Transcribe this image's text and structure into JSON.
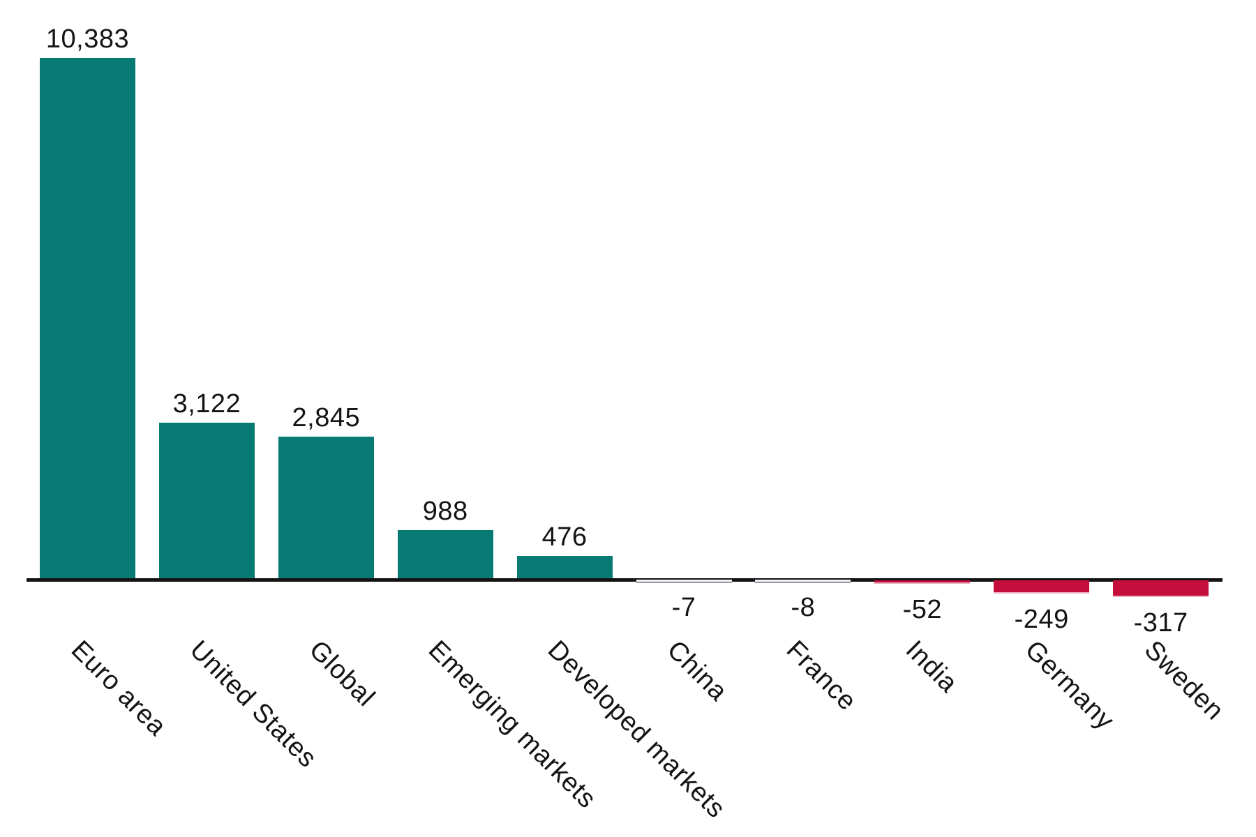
{
  "chart_data": {
    "type": "bar",
    "title": "",
    "xlabel": "",
    "ylabel": "",
    "categories": [
      "Euro area",
      "United States",
      "Global",
      "Emerging markets",
      "Developed markets",
      "China",
      "France",
      "India",
      "Germany",
      "Sweden"
    ],
    "values": [
      10383,
      3122,
      2845,
      988,
      476,
      -7,
      -8,
      -52,
      -249,
      -317
    ],
    "value_labels": [
      "10,383",
      "3,122",
      "2,845",
      "988",
      "476",
      "-7",
      "-8",
      "-52",
      "-249",
      "-317"
    ],
    "baseline": 0,
    "grid": false,
    "legend": false,
    "y_axis_shown": false,
    "tick_label_rotation_deg": 45,
    "positive_color": "#087a74",
    "negative_color": "#c40d3a",
    "tiny_bar_face_color": "#f1eff6",
    "axis_color": "#131313",
    "label_color": "#141414"
  }
}
